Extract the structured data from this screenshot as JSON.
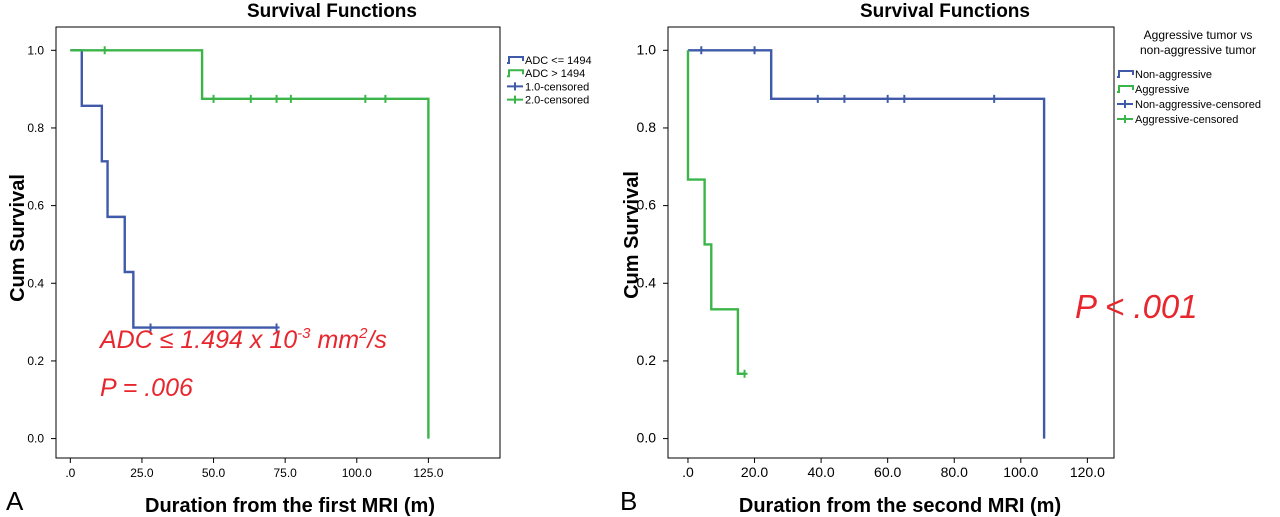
{
  "colors": {
    "blue": "#3e5aa9",
    "green": "#3bb54a",
    "red": "#e8262d",
    "axis": "#000000"
  },
  "chart_data": [
    {
      "type": "line",
      "panel": "A",
      "title": "Survival Functions",
      "xlabel": "Duration from the first MRI (m)",
      "ylabel": "Cum Survival",
      "xlim": [
        -5,
        150
      ],
      "ylim": [
        -0.05,
        1.06
      ],
      "x_ticks": [
        0,
        25,
        50,
        75,
        100,
        125
      ],
      "x_tick_labels": [
        ".0",
        "25.0",
        "50.0",
        "75.0",
        "100.0",
        "125.0"
      ],
      "y_ticks": [
        0,
        0.2,
        0.4,
        0.6,
        0.8,
        1.0
      ],
      "y_tick_labels": [
        "0.0",
        "0.2",
        "0.4",
        "0.6",
        "0.8",
        "1.0"
      ],
      "legend": {
        "placement": "right",
        "title": "",
        "entries": [
          {
            "label": "ADC <= 1494",
            "color": "#3e5aa9",
            "marker": "step"
          },
          {
            "label": "ADC > 1494",
            "color": "#3bb54a",
            "marker": "step"
          },
          {
            "label": "1.0-censored",
            "color": "#3e5aa9",
            "marker": "plus"
          },
          {
            "label": "2.0-censored",
            "color": "#3bb54a",
            "marker": "plus"
          }
        ]
      },
      "series": [
        {
          "name": "ADC <= 1494",
          "color": "#3e5aa9",
          "steps": [
            [
              0,
              1.0
            ],
            [
              4,
              0.857
            ],
            [
              11,
              0.714
            ],
            [
              13,
              0.571
            ],
            [
              19,
              0.429
            ],
            [
              22,
              0.286
            ],
            [
              72,
              0.286
            ]
          ],
          "censored": [
            [
              28,
              0.286
            ],
            [
              72,
              0.286
            ]
          ]
        },
        {
          "name": "ADC > 1494",
          "color": "#3bb54a",
          "steps": [
            [
              0,
              1.0
            ],
            [
              46,
              0.875
            ],
            [
              125,
              0.0
            ]
          ],
          "censored": [
            [
              12,
              1.0
            ],
            [
              50,
              0.875
            ],
            [
              63,
              0.875
            ],
            [
              72,
              0.875
            ],
            [
              77,
              0.875
            ],
            [
              103,
              0.875
            ],
            [
              110,
              0.875
            ]
          ]
        }
      ],
      "annotations": [
        {
          "base": "ADC ≤ 1.494 x 10",
          "sup": "-3",
          "rest": " mm",
          "sup2": "2",
          "tail": "/s"
        },
        {
          "text": "P = .006"
        }
      ]
    },
    {
      "type": "line",
      "panel": "B",
      "title": "Survival Functions",
      "xlabel": "Duration from the second MRI (m)",
      "ylabel": "Cum Survival",
      "xlim": [
        -6,
        128
      ],
      "ylim": [
        -0.05,
        1.06
      ],
      "x_ticks": [
        0,
        20,
        40,
        60,
        80,
        100,
        120
      ],
      "x_tick_labels": [
        ".0",
        "20.0",
        "40.0",
        "60.0",
        "80.0",
        "100.0",
        "120.0"
      ],
      "y_ticks": [
        0,
        0.2,
        0.4,
        0.6,
        0.8,
        1.0
      ],
      "y_tick_labels": [
        "0.0",
        "0.2",
        "0.4",
        "0.6",
        "0.8",
        "1.0"
      ],
      "legend": {
        "placement": "right",
        "title": [
          "Aggressive tumor vs",
          "non-aggressive tumor"
        ],
        "entries": [
          {
            "label": "Non-aggressive",
            "color": "#3e5aa9",
            "marker": "step"
          },
          {
            "label": "Aggressive",
            "color": "#3bb54a",
            "marker": "step"
          },
          {
            "label": "Non-aggressive-censored",
            "color": "#3e5aa9",
            "marker": "plus"
          },
          {
            "label": "Aggressive-censored",
            "color": "#3bb54a",
            "marker": "plus"
          }
        ]
      },
      "series": [
        {
          "name": "Non-aggressive",
          "color": "#3e5aa9",
          "steps": [
            [
              0,
              1.0
            ],
            [
              25,
              0.875
            ],
            [
              107,
              0.0
            ]
          ],
          "censored": [
            [
              4,
              1.0
            ],
            [
              20,
              1.0
            ],
            [
              39,
              0.875
            ],
            [
              47,
              0.875
            ],
            [
              60,
              0.875
            ],
            [
              65,
              0.875
            ],
            [
              92,
              0.875
            ]
          ]
        },
        {
          "name": "Aggressive",
          "color": "#3bb54a",
          "steps": [
            [
              0,
              0.667
            ],
            [
              5,
              0.5
            ],
            [
              7,
              0.333
            ],
            [
              15,
              0.167
            ],
            [
              17,
              0.167
            ]
          ],
          "start": 1.0,
          "censored": [
            [
              17,
              0.167
            ]
          ]
        }
      ],
      "annotations": [
        {
          "text": "P < .001"
        }
      ]
    }
  ],
  "panels": [
    "A",
    "B"
  ]
}
